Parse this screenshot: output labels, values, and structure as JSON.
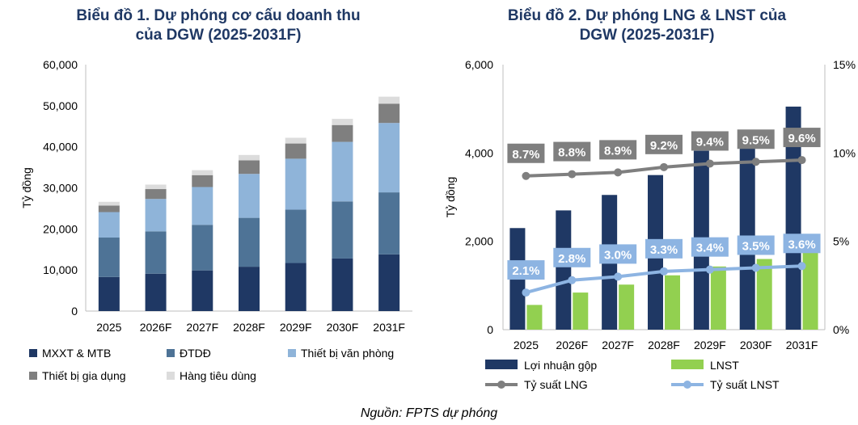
{
  "source_note": "Nguồn: FPTS dự phóng",
  "chart_data": [
    {
      "type": "bar",
      "stacked": true,
      "title": "Biểu đồ 1. Dự phóng cơ cấu doanh thu của DGW (2025-2031F)",
      "title_lines": [
        "Biểu đồ 1. Dự phóng cơ cấu doanh thu",
        "của DGW (2025-2031F)"
      ],
      "ylabel": "Tỷ đồng",
      "ylim": [
        0,
        60000
      ],
      "yticks": [
        "0",
        "10,000",
        "20,000",
        "30,000",
        "40,000",
        "50,000",
        "60,000"
      ],
      "categories": [
        "2025",
        "2026F",
        "2027F",
        "2028F",
        "2029F",
        "2030F",
        "2031F"
      ],
      "legend": "bottom",
      "series": [
        {
          "name": "MXXT & MTB",
          "color": "#1f3864",
          "values": [
            8300,
            9100,
            9900,
            10800,
            11700,
            12800,
            13800
          ]
        },
        {
          "name": "ĐTDĐ",
          "color": "#4e7396",
          "values": [
            9600,
            10300,
            11100,
            11900,
            13000,
            13900,
            15100
          ]
        },
        {
          "name": "Thiết bị văn phòng",
          "color": "#8fb4d9",
          "values": [
            6200,
            7900,
            9200,
            10700,
            12400,
            14500,
            16900
          ]
        },
        {
          "name": "Thiết bị gia dụng",
          "color": "#7f7f7f",
          "values": [
            1600,
            2400,
            2900,
            3300,
            3700,
            4100,
            4700
          ]
        },
        {
          "name": "Hàng tiêu dùng",
          "color": "#dcdcdc",
          "values": [
            900,
            1100,
            1200,
            1300,
            1400,
            1500,
            1700
          ]
        }
      ]
    },
    {
      "type": "bar",
      "title": "Biểu đồ 2. Dự phóng LNG & LNST của DGW (2025-2031F)",
      "title_lines": [
        "Biểu đồ 2. Dự phóng LNG & LNST của",
        "DGW (2025-2031F)"
      ],
      "ylabel": "Tỷ đồng",
      "ylim": [
        0,
        6000
      ],
      "yticks": [
        "0",
        "2,000",
        "4,000",
        "6,000"
      ],
      "y2lim": [
        0,
        15
      ],
      "y2ticks": [
        "0%",
        "5%",
        "10%",
        "15%"
      ],
      "categories": [
        "2025",
        "2026F",
        "2027F",
        "2028F",
        "2029F",
        "2030F",
        "2031F"
      ],
      "legend": "bottom",
      "series": [
        {
          "name": "Lợi nhuận gộp",
          "type": "bar",
          "axis": "left",
          "color": "#1f3864",
          "values": [
            2300,
            2700,
            3050,
            3500,
            4050,
            4450,
            5050
          ]
        },
        {
          "name": "LNST",
          "type": "bar",
          "axis": "left",
          "color": "#92d050",
          "values": [
            560,
            840,
            1020,
            1230,
            1430,
            1600,
            1800
          ]
        },
        {
          "name": "Tỷ suất LNG",
          "type": "line",
          "axis": "right",
          "color": "#7f7f7f",
          "values": [
            8.7,
            8.8,
            8.9,
            9.2,
            9.4,
            9.5,
            9.6
          ],
          "labels": [
            "8.7%",
            "8.8%",
            "8.9%",
            "9.2%",
            "9.4%",
            "9.5%",
            "9.6%"
          ]
        },
        {
          "name": "Tỷ suất LNST",
          "type": "line",
          "axis": "right",
          "color": "#8db4e2",
          "values": [
            2.1,
            2.8,
            3.0,
            3.3,
            3.4,
            3.5,
            3.6
          ],
          "labels": [
            "2.1%",
            "2.8%",
            "3.0%",
            "3.3%",
            "3.4%",
            "3.5%",
            "3.6%"
          ]
        }
      ]
    }
  ]
}
